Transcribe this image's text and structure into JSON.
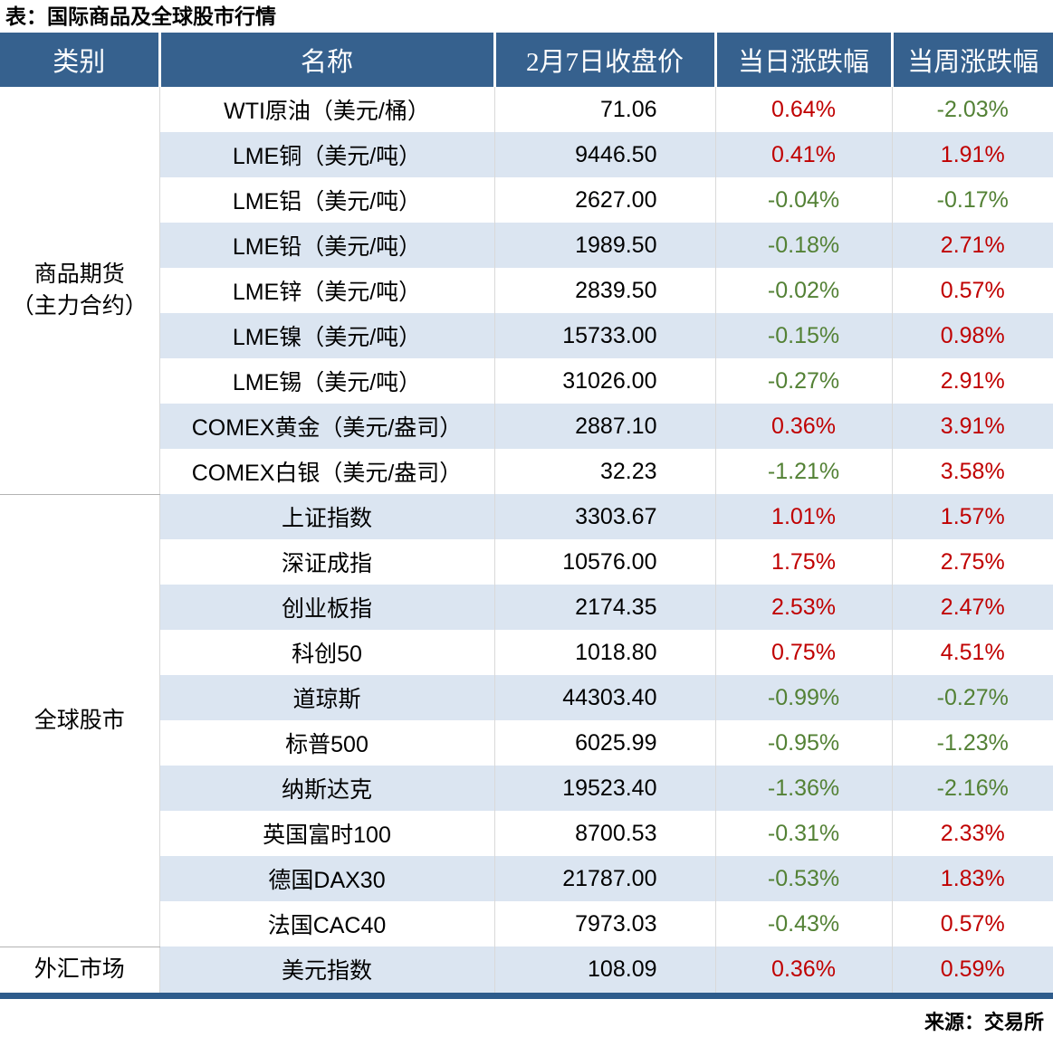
{
  "colors": {
    "header_bg": "#36618E",
    "stripe_bg": "#DBE5F1",
    "up_red": "#C00000",
    "down_green": "#538135",
    "divider_gray": "#D9D9D9",
    "bottom_border_blue": "#2E5C8C"
  },
  "chart_data": {
    "type": "table",
    "title": "表：国际商品及全球股市行情",
    "source": "来源：交易所",
    "columns": [
      "类别",
      "名称",
      "2月7日收盘价",
      "当日涨跌幅",
      "当周涨跌幅"
    ],
    "groups": [
      {
        "label": "商品期货（主力合约）",
        "lines": [
          "商品期货",
          "（主力合约）"
        ],
        "span": 9
      },
      {
        "label": "全球股市",
        "lines": [
          "全球股市"
        ],
        "span": 10
      },
      {
        "label": "外汇市场",
        "lines": [
          "外汇市场"
        ],
        "span": 1
      }
    ],
    "rows": [
      {
        "category": "商品期货（主力合约）",
        "name": "WTI原油（美元/桶）",
        "close": "71.06",
        "daily": "0.64%",
        "weekly": "-2.03%"
      },
      {
        "category": "商品期货（主力合约）",
        "name": "LME铜（美元/吨）",
        "close": "9446.50",
        "daily": "0.41%",
        "weekly": "1.91%"
      },
      {
        "category": "商品期货（主力合约）",
        "name": "LME铝（美元/吨）",
        "close": "2627.00",
        "daily": "-0.04%",
        "weekly": "-0.17%"
      },
      {
        "category": "商品期货（主力合约）",
        "name": "LME铅（美元/吨）",
        "close": "1989.50",
        "daily": "-0.18%",
        "weekly": "2.71%"
      },
      {
        "category": "商品期货（主力合约）",
        "name": "LME锌（美元/吨）",
        "close": "2839.50",
        "daily": "-0.02%",
        "weekly": "0.57%"
      },
      {
        "category": "商品期货（主力合约）",
        "name": "LME镍（美元/吨）",
        "close": "15733.00",
        "daily": "-0.15%",
        "weekly": "0.98%"
      },
      {
        "category": "商品期货（主力合约）",
        "name": "LME锡（美元/吨）",
        "close": "31026.00",
        "daily": "-0.27%",
        "weekly": "2.91%"
      },
      {
        "category": "商品期货（主力合约）",
        "name": "COMEX黄金（美元/盎司）",
        "close": "2887.10",
        "daily": "0.36%",
        "weekly": "3.91%"
      },
      {
        "category": "商品期货（主力合约）",
        "name": "COMEX白银（美元/盎司）",
        "close": "32.23",
        "daily": "-1.21%",
        "weekly": "3.58%"
      },
      {
        "category": "全球股市",
        "name": "上证指数",
        "close": "3303.67",
        "daily": "1.01%",
        "weekly": "1.57%"
      },
      {
        "category": "全球股市",
        "name": "深证成指",
        "close": "10576.00",
        "daily": "1.75%",
        "weekly": "2.75%"
      },
      {
        "category": "全球股市",
        "name": "创业板指",
        "close": "2174.35",
        "daily": "2.53%",
        "weekly": "2.47%"
      },
      {
        "category": "全球股市",
        "name": "科创50",
        "close": "1018.80",
        "daily": "0.75%",
        "weekly": "4.51%"
      },
      {
        "category": "全球股市",
        "name": "道琼斯",
        "close": "44303.40",
        "daily": "-0.99%",
        "weekly": "-0.27%"
      },
      {
        "category": "全球股市",
        "name": "标普500",
        "close": "6025.99",
        "daily": "-0.95%",
        "weekly": "-1.23%"
      },
      {
        "category": "全球股市",
        "name": "纳斯达克",
        "close": "19523.40",
        "daily": "-1.36%",
        "weekly": "-2.16%"
      },
      {
        "category": "全球股市",
        "name": "英国富时100",
        "close": "8700.53",
        "daily": "-0.31%",
        "weekly": "2.33%"
      },
      {
        "category": "全球股市",
        "name": "德国DAX30",
        "close": "21787.00",
        "daily": "-0.53%",
        "weekly": "1.83%"
      },
      {
        "category": "全球股市",
        "name": "法国CAC40",
        "close": "7973.03",
        "daily": "-0.43%",
        "weekly": "0.57%"
      },
      {
        "category": "外汇市场",
        "name": "美元指数",
        "close": "108.09",
        "daily": "0.36%",
        "weekly": "0.59%"
      }
    ]
  }
}
